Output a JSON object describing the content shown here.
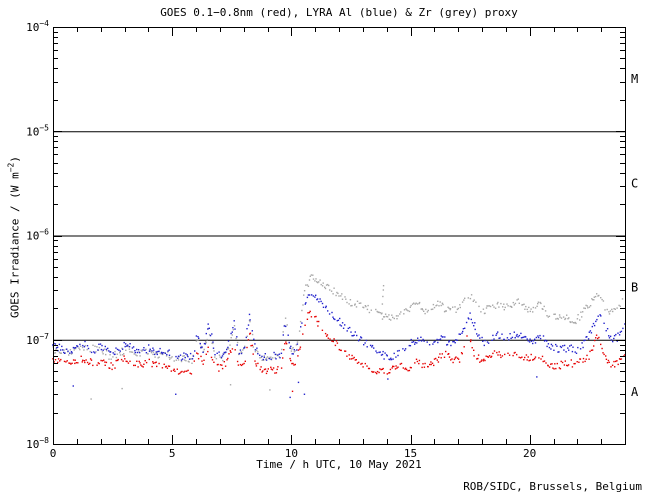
{
  "credit": "ROB/SIDC, Brussels, Belgium",
  "chart_data": {
    "type": "scatter",
    "title": "GOES 0.1−0.8nm (red), LYRA Al (blue) & Zr (grey) proxy",
    "xlabel": "Time / h UTC, 10 May 2021",
    "ylabel_parts": {
      "main": "GOES Irradiance / (W m",
      "sup": "−2",
      "suffix": ")"
    },
    "x_range": [
      0,
      24
    ],
    "x_major_ticks": [
      0,
      5,
      10,
      15,
      20
    ],
    "x_minor_tick_every_h": 1,
    "y_scale": "log",
    "y_exp_range": [
      -8,
      -4
    ],
    "y_tick_exponents": [
      -4,
      -5,
      -6,
      -7,
      -8
    ],
    "hlines_exp": [
      -5,
      -6,
      -7
    ],
    "grid": "off",
    "legend": "in-title",
    "flare_classes": [
      {
        "label": "M",
        "mid_exp": -4.5
      },
      {
        "label": "C",
        "mid_exp": -5.5
      },
      {
        "label": "B",
        "mid_exp": -6.5
      },
      {
        "label": "A",
        "mid_exp": -7.5
      }
    ],
    "series": [
      {
        "id": "goes-red",
        "label": "GOES 0.1-0.8nm",
        "color_name": "red",
        "color": "#e60000",
        "points": [
          [
            0,
            6.4e-08
          ],
          [
            0.3,
            6.1e-08
          ],
          [
            0.7,
            5.7e-08
          ],
          [
            1.0,
            6.3e-08
          ],
          [
            1.3,
            6.5e-08
          ],
          [
            1.7,
            5.9e-08
          ],
          [
            2.0,
            6.3e-08
          ],
          [
            2.4,
            5.5e-08
          ],
          [
            2.7,
            5.9e-08
          ],
          [
            3.0,
            6.5e-08
          ],
          [
            3.3,
            6.1e-08
          ],
          [
            3.7,
            5.8e-08
          ],
          [
            4.0,
            6.1e-08
          ],
          [
            4.3,
            5.6e-08
          ],
          [
            4.7,
            5.9e-08
          ],
          [
            5.0,
            5.3e-08
          ],
          [
            5.3,
            4.9e-08
          ],
          [
            5.6,
            5.4e-08
          ],
          [
            5.85,
            5e-08
          ],
          [
            6.05,
            7.6e-08
          ],
          [
            6.3,
            5.9e-08
          ],
          [
            6.55,
            9.2e-08
          ],
          [
            6.8,
            5.5e-08
          ],
          [
            7.1,
            5.3e-08
          ],
          [
            7.35,
            6.6e-08
          ],
          [
            7.6,
            9.6e-08
          ],
          [
            7.8,
            5.7e-08
          ],
          [
            8.05,
            6.1e-08
          ],
          [
            8.25,
            1.2e-07
          ],
          [
            8.45,
            6.3e-08
          ],
          [
            8.7,
            5.3e-08
          ],
          [
            9.0,
            5e-08
          ],
          [
            9.3,
            5.2e-08
          ],
          [
            9.55,
            5.1e-08
          ],
          [
            9.75,
            1.05e-07
          ],
          [
            9.95,
            6.1e-08
          ],
          [
            10.15,
            5.7e-08
          ],
          [
            10.35,
            8e-08
          ],
          [
            10.55,
            1.4e-07
          ],
          [
            10.75,
            1.9e-07
          ],
          [
            10.95,
            1.65e-07
          ],
          [
            11.2,
            1.35e-07
          ],
          [
            11.6,
            1.05e-07
          ],
          [
            12.0,
            8.5e-08
          ],
          [
            12.4,
            7e-08
          ],
          [
            12.8,
            6e-08
          ],
          [
            13.2,
            5.5e-08
          ],
          [
            13.6,
            5.1e-08
          ],
          [
            14.0,
            4.9e-08
          ],
          [
            14.4,
            5.3e-08
          ],
          [
            14.7,
            5.7e-08
          ],
          [
            15.0,
            5.3e-08
          ],
          [
            15.3,
            6.5e-08
          ],
          [
            15.6,
            5.5e-08
          ],
          [
            15.9,
            5.7e-08
          ],
          [
            16.2,
            6.7e-08
          ],
          [
            16.5,
            7.5e-08
          ],
          [
            16.8,
            6.1e-08
          ],
          [
            17.1,
            6.7e-08
          ],
          [
            17.45,
            1.15e-07
          ],
          [
            17.7,
            7.3e-08
          ],
          [
            18.0,
            6.3e-08
          ],
          [
            18.3,
            6.9e-08
          ],
          [
            18.6,
            7.5e-08
          ],
          [
            18.9,
            6.9e-08
          ],
          [
            19.2,
            7.1e-08
          ],
          [
            19.5,
            7.5e-08
          ],
          [
            19.8,
            6.7e-08
          ],
          [
            20.1,
            6.7e-08
          ],
          [
            20.4,
            7.1e-08
          ],
          [
            20.7,
            6e-08
          ],
          [
            21.0,
            5.5e-08
          ],
          [
            21.3,
            5.7e-08
          ],
          [
            21.6,
            6.1e-08
          ],
          [
            21.9,
            5.7e-08
          ],
          [
            22.2,
            6.3e-08
          ],
          [
            22.5,
            6.7e-08
          ],
          [
            22.85,
            1.1e-07
          ],
          [
            23.1,
            7.5e-08
          ],
          [
            23.35,
            6e-08
          ],
          [
            23.6,
            5.7e-08
          ],
          [
            23.8,
            6.3e-08
          ],
          [
            24,
            7.6e-08
          ]
        ]
      },
      {
        "id": "lyra-al-blue",
        "label": "LYRA Al proxy",
        "color_name": "blue",
        "color": "#2222cc",
        "points": [
          [
            0,
            8.7e-08
          ],
          [
            0.3,
            8.3e-08
          ],
          [
            0.7,
            7.7e-08
          ],
          [
            1.0,
            8.7e-08
          ],
          [
            1.3,
            9.1e-08
          ],
          [
            1.7,
            7.9e-08
          ],
          [
            2.0,
            8.7e-08
          ],
          [
            2.4,
            7.3e-08
          ],
          [
            2.7,
            7.9e-08
          ],
          [
            3.0,
            9.1e-08
          ],
          [
            3.3,
            8.3e-08
          ],
          [
            3.7,
            7.7e-08
          ],
          [
            4.0,
            8.3e-08
          ],
          [
            4.3,
            7.5e-08
          ],
          [
            4.7,
            7.9e-08
          ],
          [
            5.0,
            7.1e-08
          ],
          [
            5.3,
            6.5e-08
          ],
          [
            5.6,
            7.1e-08
          ],
          [
            5.85,
            6.7e-08
          ],
          [
            6.05,
            1.07e-07
          ],
          [
            6.3,
            7.9e-08
          ],
          [
            6.55,
            1.4e-07
          ],
          [
            6.8,
            7.3e-08
          ],
          [
            7.1,
            7.1e-08
          ],
          [
            7.35,
            8.9e-08
          ],
          [
            7.6,
            1.5e-07
          ],
          [
            7.8,
            7.7e-08
          ],
          [
            8.05,
            8.3e-08
          ],
          [
            8.25,
            1.85e-07
          ],
          [
            8.45,
            8.5e-08
          ],
          [
            8.7,
            7.1e-08
          ],
          [
            9.0,
            6.7e-08
          ],
          [
            9.3,
            7e-08
          ],
          [
            9.55,
            6.8e-08
          ],
          [
            9.75,
            1.5e-07
          ],
          [
            9.95,
            8.1e-08
          ],
          [
            10.15,
            7.5e-08
          ],
          [
            10.35,
            1.1e-07
          ],
          [
            10.55,
            2.1e-07
          ],
          [
            10.78,
            2.9e-07
          ],
          [
            11.0,
            2.6e-07
          ],
          [
            11.3,
            2.2e-07
          ],
          [
            11.7,
            1.75e-07
          ],
          [
            12.1,
            1.45e-07
          ],
          [
            12.5,
            1.2e-07
          ],
          [
            12.9,
            1e-07
          ],
          [
            13.3,
            8.7e-08
          ],
          [
            13.7,
            7.5e-08
          ],
          [
            14.1,
            6.7e-08
          ],
          [
            14.5,
            7.3e-08
          ],
          [
            14.8,
            8.5e-08
          ],
          [
            15.1,
            9.5e-08
          ],
          [
            15.4,
            1e-07
          ],
          [
            15.7,
            8.9e-08
          ],
          [
            16.0,
            9.7e-08
          ],
          [
            16.3,
            1.05e-07
          ],
          [
            16.6,
            9.1e-08
          ],
          [
            16.9,
            9.7e-08
          ],
          [
            17.2,
            1.15e-07
          ],
          [
            17.5,
            1.8e-07
          ],
          [
            17.8,
            1.15e-07
          ],
          [
            18.1,
            9.3e-08
          ],
          [
            18.4,
            1.05e-07
          ],
          [
            18.7,
            1.1e-07
          ],
          [
            19.0,
            1.05e-07
          ],
          [
            19.3,
            1.1e-07
          ],
          [
            19.6,
            1.15e-07
          ],
          [
            19.9,
            9.7e-08
          ],
          [
            20.2,
            9.9e-08
          ],
          [
            20.5,
            1.05e-07
          ],
          [
            20.8,
            8.9e-08
          ],
          [
            21.1,
            8.3e-08
          ],
          [
            21.4,
            8.1e-08
          ],
          [
            21.7,
            8.5e-08
          ],
          [
            22.0,
            7.9e-08
          ],
          [
            22.3,
            9.3e-08
          ],
          [
            22.6,
            1.2e-07
          ],
          [
            22.9,
            1.85e-07
          ],
          [
            23.2,
            1.25e-07
          ],
          [
            23.45,
            1e-07
          ],
          [
            23.7,
            1.05e-07
          ],
          [
            24,
            1.5e-07
          ]
        ]
      },
      {
        "id": "lyra-zr-grey",
        "label": "LYRA Zr proxy",
        "color_name": "grey",
        "color": "#a8a8a8",
        "points": [
          [
            0,
            8.1e-08
          ],
          [
            0.5,
            7.5e-08
          ],
          [
            1.0,
            8.1e-08
          ],
          [
            1.5,
            8.3e-08
          ],
          [
            2.0,
            7.9e-08
          ],
          [
            2.4,
            6.9e-08
          ],
          [
            2.8,
            7.5e-08
          ],
          [
            3.2,
            8.3e-08
          ],
          [
            3.6,
            7.3e-08
          ],
          [
            4.0,
            7.9e-08
          ],
          [
            4.4,
            7.1e-08
          ],
          [
            4.8,
            7.3e-08
          ],
          [
            5.2,
            6.3e-08
          ],
          [
            5.6,
            6.7e-08
          ],
          [
            5.85,
            6.3e-08
          ],
          [
            6.05,
            9.9e-08
          ],
          [
            6.3,
            7.5e-08
          ],
          [
            6.55,
            1.25e-07
          ],
          [
            6.8,
            6.9e-08
          ],
          [
            7.1,
            6.7e-08
          ],
          [
            7.35,
            8.3e-08
          ],
          [
            7.6,
            1.35e-07
          ],
          [
            7.8,
            7.3e-08
          ],
          [
            8.05,
            7.9e-08
          ],
          [
            8.25,
            1.7e-07
          ],
          [
            8.45,
            8.1e-08
          ],
          [
            8.7,
            6.9e-08
          ],
          [
            9.0,
            6.5e-08
          ],
          [
            9.3,
            6.7e-08
          ],
          [
            9.55,
            6.6e-08
          ],
          [
            9.75,
            1.6e-07
          ],
          [
            9.95,
            8.1e-08
          ],
          [
            10.15,
            7.7e-08
          ],
          [
            10.35,
            1.3e-07
          ],
          [
            10.55,
            2.8e-07
          ],
          [
            10.8,
            4e-07
          ],
          [
            11.1,
            3.6e-07
          ],
          [
            11.5,
            3.2e-07
          ],
          [
            11.9,
            2.8e-07
          ],
          [
            12.3,
            2.4e-07
          ],
          [
            12.7,
            2.2e-07
          ],
          [
            13.1,
            2.05e-07
          ],
          [
            13.5,
            1.85e-07
          ],
          [
            13.9,
            1.65e-07
          ],
          [
            14.3,
            1.6e-07
          ],
          [
            14.7,
            1.9e-07
          ],
          [
            15.0,
            2e-07
          ],
          [
            15.3,
            2.25e-07
          ],
          [
            15.6,
            1.9e-07
          ],
          [
            15.9,
            2e-07
          ],
          [
            16.2,
            2.2e-07
          ],
          [
            16.5,
            1.95e-07
          ],
          [
            16.8,
            1.9e-07
          ],
          [
            17.1,
            2.1e-07
          ],
          [
            17.45,
            2.8e-07
          ],
          [
            17.75,
            2.2e-07
          ],
          [
            18.05,
            1.85e-07
          ],
          [
            18.35,
            2.05e-07
          ],
          [
            18.65,
            2.15e-07
          ],
          [
            18.95,
            2.05e-07
          ],
          [
            19.25,
            2.2e-07
          ],
          [
            19.55,
            2.3e-07
          ],
          [
            19.85,
            1.95e-07
          ],
          [
            20.15,
            2e-07
          ],
          [
            20.45,
            2.15e-07
          ],
          [
            20.75,
            1.8e-07
          ],
          [
            21.05,
            1.7e-07
          ],
          [
            21.35,
            1.65e-07
          ],
          [
            21.65,
            1.6e-07
          ],
          [
            21.95,
            1.5e-07
          ],
          [
            22.25,
            1.85e-07
          ],
          [
            22.55,
            2.3e-07
          ],
          [
            22.9,
            2.7e-07
          ],
          [
            23.2,
            2e-07
          ],
          [
            23.45,
            1.85e-07
          ],
          [
            23.7,
            2.1e-07
          ],
          [
            24,
            2.4e-07
          ]
        ]
      }
    ],
    "outliers": [
      {
        "h": 0.85,
        "v": 3.6e-08,
        "series": "lyra-al-blue"
      },
      {
        "h": 1.6,
        "v": 2.7e-08,
        "series": "lyra-zr-grey"
      },
      {
        "h": 2.9,
        "v": 3.4e-08,
        "series": "lyra-zr-grey"
      },
      {
        "h": 5.15,
        "v": 3e-08,
        "series": "lyra-al-blue"
      },
      {
        "h": 7.45,
        "v": 3.7e-08,
        "series": "lyra-zr-grey"
      },
      {
        "h": 9.1,
        "v": 3.3e-08,
        "series": "lyra-zr-grey"
      },
      {
        "h": 9.95,
        "v": 2.8e-08,
        "series": "lyra-al-blue"
      },
      {
        "h": 10.05,
        "v": 3.2e-08,
        "series": "goes-red"
      },
      {
        "h": 10.3,
        "v": 3.9e-08,
        "series": "lyra-al-blue"
      },
      {
        "h": 10.55,
        "v": 3e-08,
        "series": "lyra-al-blue"
      },
      {
        "h": 13.8,
        "v": 1.8e-07,
        "series": "lyra-zr-grey"
      },
      {
        "h": 13.82,
        "v": 2.2e-07,
        "series": "lyra-zr-grey"
      },
      {
        "h": 13.84,
        "v": 2.6e-07,
        "series": "lyra-zr-grey"
      },
      {
        "h": 13.86,
        "v": 3e-07,
        "series": "lyra-zr-grey"
      },
      {
        "h": 13.87,
        "v": 3.3e-07,
        "series": "lyra-zr-grey"
      },
      {
        "h": 14.05,
        "v": 4.2e-08,
        "series": "lyra-al-blue"
      },
      {
        "h": 20.3,
        "v": 4.4e-08,
        "series": "lyra-al-blue"
      }
    ]
  }
}
